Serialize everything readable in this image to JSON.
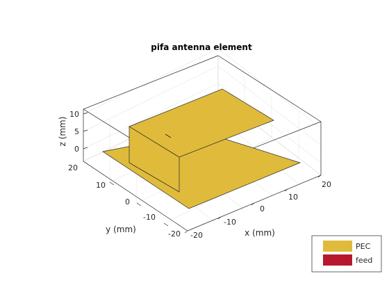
{
  "title": "pifa antenna element",
  "axes": {
    "xlabel": "x (mm)",
    "ylabel": "y (mm)",
    "zlabel": "z (mm)",
    "x_ticks": [
      "-20",
      "-10",
      "0",
      "10",
      "20"
    ],
    "y_ticks": [
      "-20",
      "-10",
      "0",
      "10",
      "20"
    ],
    "z_ticks": [
      "0",
      "5",
      "10"
    ]
  },
  "legend": [
    {
      "label": "PEC",
      "color": "#e0bb3b"
    },
    {
      "label": "feed",
      "color": "#b8182e"
    }
  ],
  "colors": {
    "pec": "#e0bb3b",
    "feed": "#b8182e",
    "grid": "#e6e6e6",
    "box_edge": "#262626"
  }
}
